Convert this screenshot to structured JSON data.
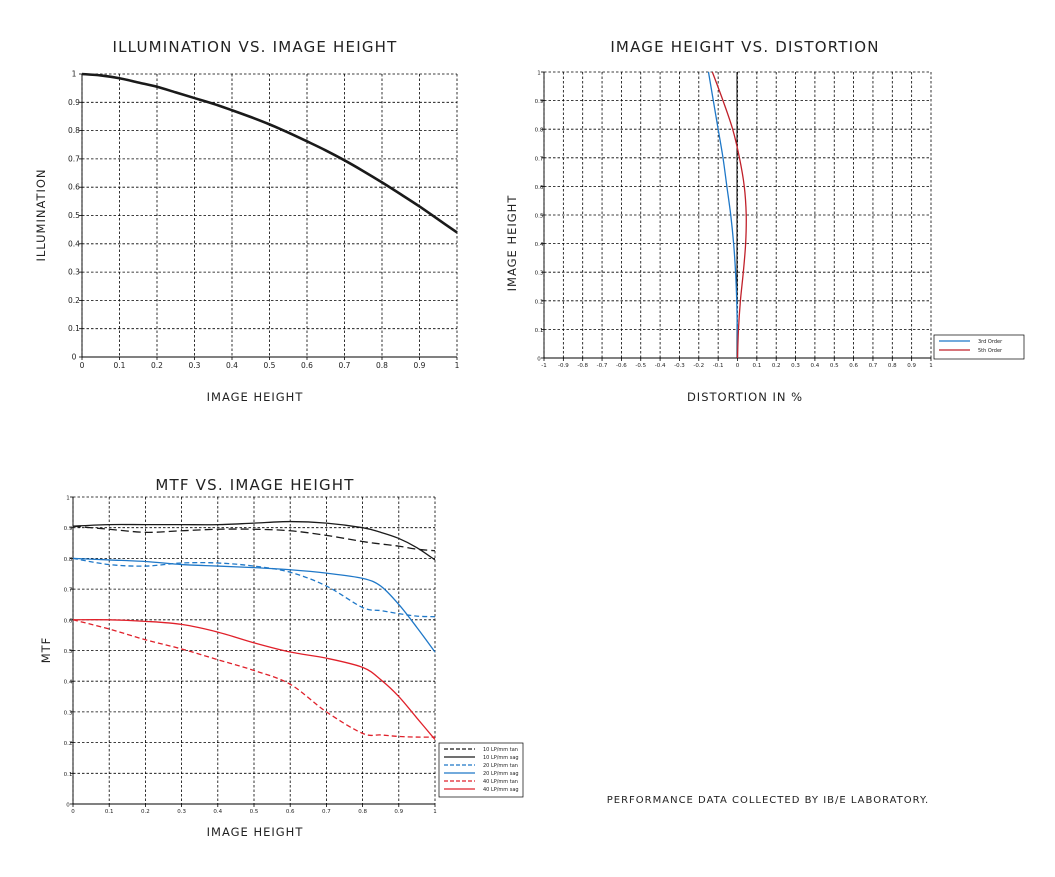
{
  "footer_note": "PERFORMANCE DATA COLLECTED BY IB/E LABORATORY.",
  "chart_data": [
    {
      "type": "line",
      "title": "ILLUMINATION VS. IMAGE HEIGHT",
      "xlabel": "IMAGE HEIGHT",
      "ylabel": "ILLUMINATION",
      "xlim": [
        0,
        1
      ],
      "ylim": [
        0,
        1
      ],
      "xticks": [
        "0",
        "0.1",
        "0.2",
        "0.3",
        "0.4",
        "0.5",
        "0.6",
        "0.7",
        "0.8",
        "0.9",
        "1"
      ],
      "yticks": [
        "0",
        "0.1",
        "0.2",
        "0.3",
        "0.4",
        "0.5",
        "0.6",
        "0.7",
        "0.8",
        "0.9",
        "1"
      ],
      "grid": true,
      "colors": [
        "#1a1a1a"
      ],
      "series": [
        {
          "x": [
            0,
            0.05,
            0.1,
            0.15,
            0.2,
            0.25,
            0.3,
            0.35,
            0.4,
            0.45,
            0.5,
            0.55,
            0.6,
            0.65,
            0.7,
            0.75,
            0.8,
            0.85,
            0.9,
            0.95,
            1
          ],
          "y": [
            1.0,
            0.995,
            0.985,
            0.97,
            0.955,
            0.935,
            0.915,
            0.895,
            0.872,
            0.848,
            0.822,
            0.793,
            0.762,
            0.73,
            0.695,
            0.657,
            0.617,
            0.575,
            0.532,
            0.486,
            0.44
          ]
        }
      ]
    },
    {
      "type": "line",
      "title": "IMAGE HEIGHT VS. DISTORTION",
      "xlabel": "DISTORTION IN %",
      "ylabel": "IMAGE HEIGHT",
      "xlim": [
        -1,
        1
      ],
      "ylim": [
        0,
        1
      ],
      "xticks": [
        "-1",
        "-0.9",
        "-0.8",
        "-0.7",
        "-0.6",
        "-0.5",
        "-0.4",
        "-0.3",
        "-0.2",
        "-0.1",
        "0",
        "0.1",
        "0.2",
        "0.3",
        "0.4",
        "0.5",
        "0.6",
        "0.7",
        "0.8",
        "0.9",
        "1"
      ],
      "yticks": [
        "0",
        "0.1",
        "0.2",
        "0.3",
        "0.4",
        "0.5",
        "0.6",
        "0.7",
        "0.8",
        "0.9",
        "1"
      ],
      "grid": true,
      "legend_position": "outside-right",
      "series": [
        {
          "name": "3rd Order",
          "color": "#1f78c8",
          "x": [
            0,
            -0.001,
            -0.004,
            -0.01,
            -0.02,
            -0.035,
            -0.055,
            -0.075,
            -0.1,
            -0.125,
            -0.15
          ],
          "y": [
            0,
            0.1,
            0.2,
            0.3,
            0.4,
            0.5,
            0.6,
            0.7,
            0.8,
            0.9,
            1.0
          ]
        },
        {
          "name": "5th Order",
          "color": "#c0202a",
          "x": [
            0,
            0.005,
            0.015,
            0.03,
            0.042,
            0.045,
            0.035,
            0.01,
            -0.025,
            -0.075,
            -0.13
          ],
          "y": [
            0,
            0.1,
            0.2,
            0.3,
            0.4,
            0.5,
            0.6,
            0.7,
            0.8,
            0.9,
            1.0
          ]
        }
      ]
    },
    {
      "type": "line",
      "title": "MTF VS. IMAGE HEIGHT",
      "xlabel": "IMAGE HEIGHT",
      "ylabel": "MTF",
      "xlim": [
        0,
        1
      ],
      "ylim": [
        0,
        1
      ],
      "xticks": [
        "0",
        "0.1",
        "0.2",
        "0.3",
        "0.4",
        "0.5",
        "0.6",
        "0.7",
        "0.8",
        "0.9",
        "1"
      ],
      "yticks": [
        "0",
        "0.1",
        "0.2",
        "0.3",
        "0.4",
        "0.5",
        "0.6",
        "0.7",
        "0.8",
        "0.9",
        "1"
      ],
      "grid": true,
      "legend_position": "outside-bottom-right",
      "x": [
        0,
        0.1,
        0.2,
        0.3,
        0.4,
        0.5,
        0.6,
        0.7,
        0.8,
        0.85,
        0.9,
        0.95,
        1.0
      ],
      "series": [
        {
          "name": "10 LP/mm tan",
          "color": "#1a1a1a",
          "dash": true,
          "values": [
            0.905,
            0.895,
            0.885,
            0.89,
            0.895,
            0.895,
            0.89,
            0.875,
            0.855,
            0.847,
            0.84,
            0.83,
            0.825
          ]
        },
        {
          "name": "10 LP/mm sag",
          "color": "#1a1a1a",
          "dash": false,
          "values": [
            0.905,
            0.91,
            0.91,
            0.91,
            0.91,
            0.915,
            0.92,
            0.915,
            0.9,
            0.885,
            0.865,
            0.835,
            0.795
          ]
        },
        {
          "name": "20 LP/mm tan",
          "color": "#1f78c8",
          "dash": true,
          "values": [
            0.8,
            0.78,
            0.775,
            0.785,
            0.785,
            0.775,
            0.755,
            0.71,
            0.64,
            0.63,
            0.62,
            0.612,
            0.61
          ]
        },
        {
          "name": "20 LP/mm sag",
          "color": "#1f78c8",
          "dash": false,
          "values": [
            0.8,
            0.795,
            0.79,
            0.78,
            0.775,
            0.77,
            0.763,
            0.752,
            0.735,
            0.71,
            0.65,
            0.575,
            0.495
          ]
        },
        {
          "name": "40 LP/mm tan",
          "color": "#e0202a",
          "dash": true,
          "values": [
            0.6,
            0.57,
            0.535,
            0.505,
            0.47,
            0.435,
            0.39,
            0.3,
            0.23,
            0.225,
            0.22,
            0.218,
            0.218
          ]
        },
        {
          "name": "40 LP/mm sag",
          "color": "#e0202a",
          "dash": false,
          "values": [
            0.6,
            0.6,
            0.595,
            0.585,
            0.56,
            0.525,
            0.495,
            0.475,
            0.445,
            0.405,
            0.35,
            0.28,
            0.21
          ]
        }
      ]
    }
  ]
}
